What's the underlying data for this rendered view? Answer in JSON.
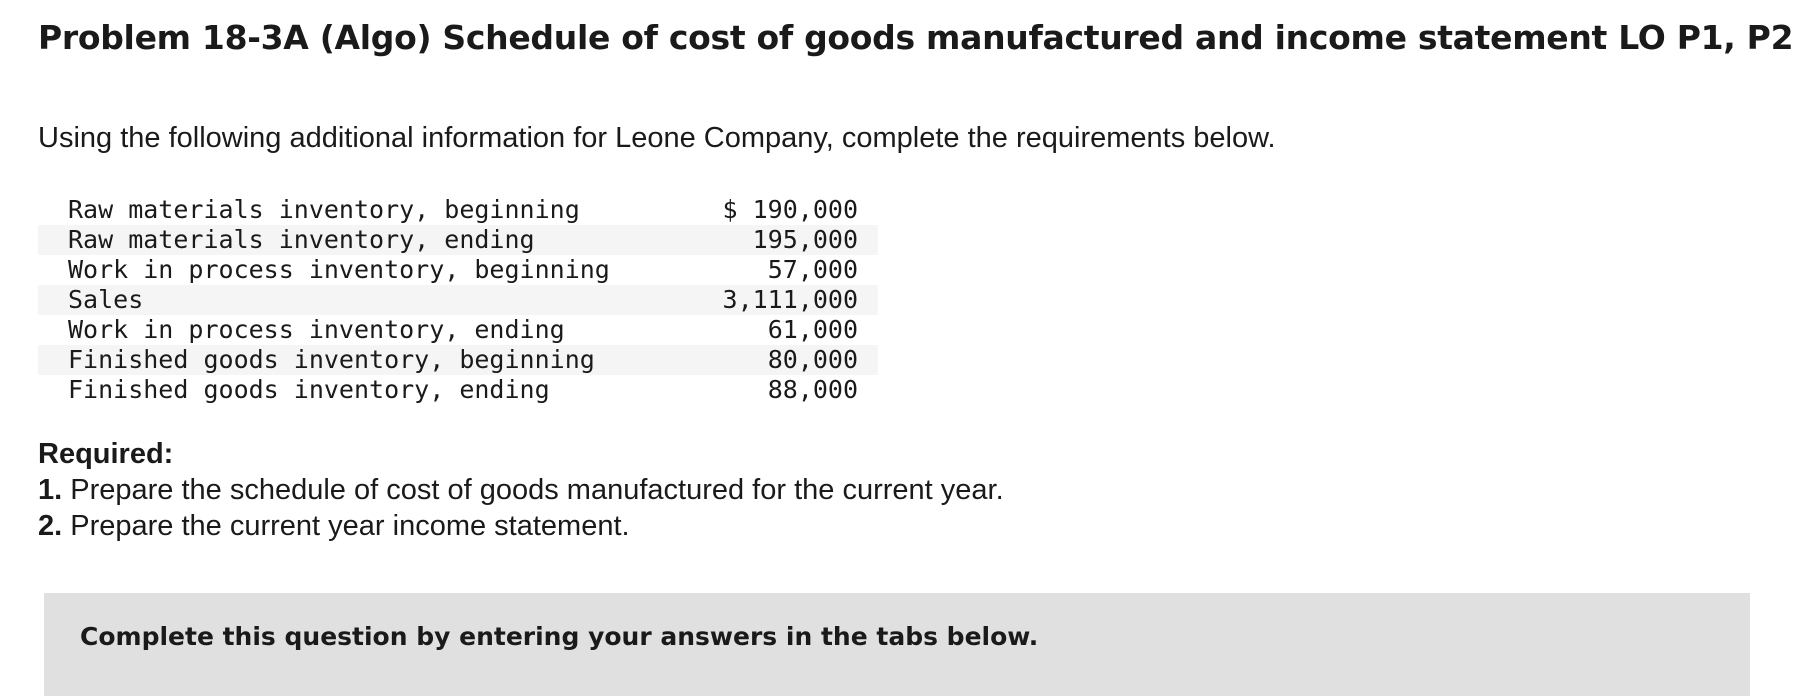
{
  "problem": {
    "title": "Problem 18-3A (Algo) Schedule of cost of goods manufactured and income statement LO P1, P2",
    "intro": "Using the following additional information for Leone Company, complete the requirements below."
  },
  "inventory_data": {
    "rows": [
      {
        "label": "Raw materials inventory, beginning",
        "value": "$ 190,000"
      },
      {
        "label": "Raw materials inventory, ending",
        "value": "195,000"
      },
      {
        "label": "Work in process inventory, beginning",
        "value": "57,000"
      },
      {
        "label": "Sales",
        "value": "3,111,000"
      },
      {
        "label": "Work in process inventory, ending",
        "value": "61,000"
      },
      {
        "label": "Finished goods inventory, beginning",
        "value": "80,000"
      },
      {
        "label": "Finished goods inventory, ending",
        "value": "88,000"
      }
    ]
  },
  "requirements": {
    "heading": "Required:",
    "items": [
      {
        "number": "1.",
        "text": "Prepare the schedule of cost of goods manufactured for the current year."
      },
      {
        "number": "2.",
        "text": "Prepare the current year income statement."
      }
    ]
  },
  "instruction": {
    "text": "Complete this question by entering your answers in the tabs below."
  }
}
